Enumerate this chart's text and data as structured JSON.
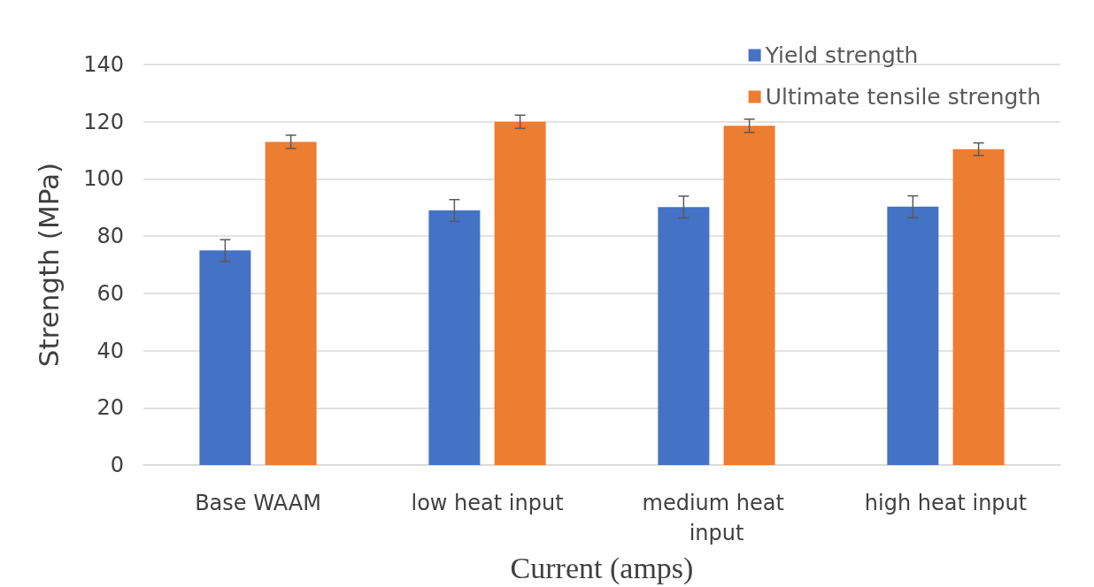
{
  "chart_data": {
    "type": "bar",
    "xlabel": "Current (amps)",
    "ylabel": "Strength (MPa)",
    "categories": [
      "Base WAAM",
      "low heat input",
      "medium heat input",
      "high heat input"
    ],
    "series": [
      {
        "name": "Yield strength",
        "color": "#4472c4",
        "values": [
          75,
          89,
          90.2,
          90.3
        ],
        "errors": [
          3.8,
          3.8,
          3.8,
          3.8
        ]
      },
      {
        "name": "Ultimate tensile strength",
        "color": "#ed7d31",
        "values": [
          113,
          120,
          118.6,
          110.4
        ],
        "errors": [
          2.3,
          2.3,
          2.3,
          2.2
        ]
      }
    ],
    "ylim": [
      0,
      140
    ],
    "yticks": [
      0,
      20,
      40,
      60,
      80,
      100,
      120,
      140
    ],
    "grid": "y",
    "legend": "top right"
  }
}
